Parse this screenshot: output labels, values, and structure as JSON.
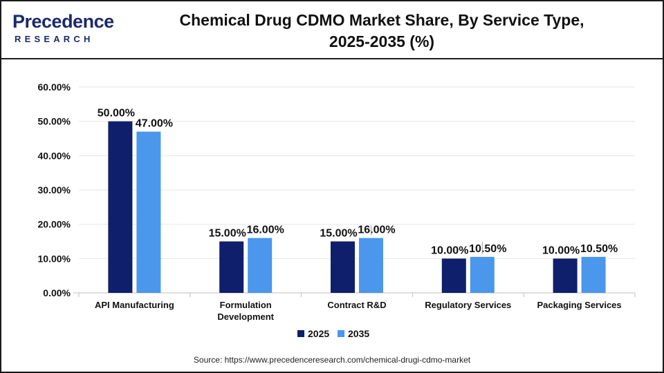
{
  "header": {
    "logo_word": "Precedence",
    "logo_sub": "RESEARCH",
    "title_line1": "Chemical Drug CDMO Market Share, By Service Type,",
    "title_line2": "2025-2035 (%)"
  },
  "source": "Source: https://www.precedenceresearch.com/chemical-drugi-cdmo-market",
  "colors": {
    "series_2025": "#0f1f6b",
    "series_2035": "#4a97ec",
    "brand": "#1b2a6b",
    "logo_accent": "#3fb0e6"
  },
  "chart_data": {
    "type": "bar",
    "title": "Chemical Drug CDMO Market Share, By Service Type, 2025-2035 (%)",
    "categories": [
      "API Manufacturing",
      "Formulation Development",
      "Contract R&D",
      "Regulatory Services",
      "Packaging Services"
    ],
    "category_lines": [
      [
        "API Manufacturing"
      ],
      [
        "Formulation",
        "Development"
      ],
      [
        "Contract R&D"
      ],
      [
        "Regulatory Services"
      ],
      [
        "Packaging Services"
      ]
    ],
    "series": [
      {
        "name": "2025",
        "values": [
          50.0,
          15.0,
          15.0,
          10.0,
          10.0
        ]
      },
      {
        "name": "2035",
        "values": [
          47.0,
          16.0,
          16.0,
          10.5,
          10.5
        ]
      }
    ],
    "value_labels": [
      [
        "50.00%",
        "15.00%",
        "15.00%",
        "10.00%",
        "10.00%"
      ],
      [
        "47.00%",
        "16.00%",
        "16.00%",
        "10.50%",
        "10.50%"
      ]
    ],
    "ylim": [
      0,
      60
    ],
    "yticks": [
      0,
      10,
      20,
      30,
      40,
      50,
      60
    ],
    "ytick_labels": [
      "0.00%",
      "10.00%",
      "20.00%",
      "30.00%",
      "40.00%",
      "50.00%",
      "60.00%"
    ],
    "xlabel": "",
    "ylabel": "",
    "grid": true,
    "legend": "bottom-center"
  }
}
